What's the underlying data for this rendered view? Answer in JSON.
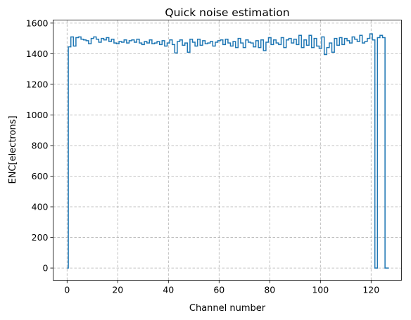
{
  "chart_data": {
    "type": "line",
    "style": "step",
    "title": "Quick noise estimation",
    "xlabel": "Channel number",
    "ylabel": "ENC[electrons]",
    "xlim": [
      -5.5,
      132
    ],
    "ylim": [
      -80,
      1620
    ],
    "xticks": [
      0,
      20,
      40,
      60,
      80,
      100,
      120
    ],
    "yticks": [
      0,
      200,
      400,
      600,
      800,
      1000,
      1200,
      1400,
      1600
    ],
    "grid": true,
    "series_color": "#1f77b4",
    "series": [
      {
        "x": [
          0,
          1,
          2,
          3,
          4,
          5,
          6,
          7,
          8,
          9,
          10,
          11,
          12,
          13,
          14,
          15,
          16,
          17,
          18,
          19,
          20,
          21,
          22,
          23,
          24,
          25,
          26,
          27,
          28,
          29,
          30,
          31,
          32,
          33,
          34,
          35,
          36,
          37,
          38,
          39,
          40,
          41,
          42,
          43,
          44,
          45,
          46,
          47,
          48,
          49,
          50,
          51,
          52,
          53,
          54,
          55,
          56,
          57,
          58,
          59,
          60,
          61,
          62,
          63,
          64,
          65,
          66,
          67,
          68,
          69,
          70,
          71,
          72,
          73,
          74,
          75,
          76,
          77,
          78,
          79,
          80,
          81,
          82,
          83,
          84,
          85,
          86,
          87,
          88,
          89,
          90,
          91,
          92,
          93,
          94,
          95,
          96,
          97,
          98,
          99,
          100,
          101,
          102,
          103,
          104,
          105,
          106,
          107,
          108,
          109,
          110,
          111,
          112,
          113,
          114,
          115,
          116,
          117,
          118,
          119,
          120,
          121,
          122,
          123,
          124,
          125,
          126,
          127
        ],
        "values": [
          0,
          1445,
          1510,
          1450,
          1505,
          1510,
          1495,
          1490,
          1485,
          1465,
          1500,
          1510,
          1495,
          1475,
          1500,
          1490,
          1505,
          1480,
          1495,
          1470,
          1465,
          1480,
          1475,
          1490,
          1470,
          1485,
          1490,
          1475,
          1495,
          1470,
          1460,
          1480,
          1470,
          1490,
          1465,
          1470,
          1480,
          1460,
          1485,
          1450,
          1470,
          1490,
          1460,
          1405,
          1480,
          1490,
          1455,
          1470,
          1410,
          1495,
          1475,
          1450,
          1495,
          1455,
          1485,
          1465,
          1470,
          1480,
          1450,
          1475,
          1485,
          1490,
          1460,
          1495,
          1470,
          1450,
          1480,
          1440,
          1500,
          1470,
          1440,
          1490,
          1475,
          1470,
          1445,
          1485,
          1440,
          1490,
          1420,
          1475,
          1505,
          1460,
          1490,
          1470,
          1460,
          1505,
          1440,
          1490,
          1500,
          1470,
          1495,
          1460,
          1520,
          1440,
          1490,
          1455,
          1520,
          1440,
          1500,
          1450,
          1435,
          1510,
          1395,
          1440,
          1470,
          1410,
          1500,
          1455,
          1505,
          1460,
          1500,
          1485,
          1470,
          1510,
          1495,
          1480,
          1520,
          1470,
          1480,
          1500,
          1530,
          1490,
          0,
          1505,
          1520,
          1505,
          0,
          0
        ]
      }
    ]
  }
}
